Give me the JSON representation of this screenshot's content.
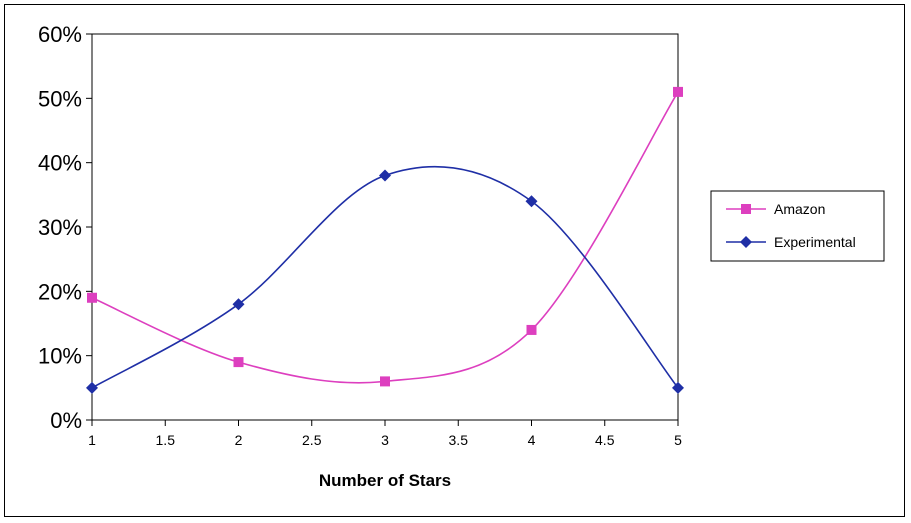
{
  "chart_data": {
    "type": "line",
    "title": "",
    "xlabel": "Number of Stars",
    "ylabel": "",
    "x": [
      1,
      2,
      3,
      4,
      5
    ],
    "xlim": [
      1,
      5
    ],
    "ylim": [
      0,
      60
    ],
    "x_ticks": [
      "1",
      "1.5",
      "2",
      "2.5",
      "3",
      "3.5",
      "4",
      "4.5",
      "5"
    ],
    "x_tick_values": [
      1,
      1.5,
      2,
      2.5,
      3,
      3.5,
      4,
      4.5,
      5
    ],
    "y_ticks": [
      "0%",
      "10%",
      "20%",
      "30%",
      "40%",
      "50%",
      "60%"
    ],
    "y_tick_values": [
      0,
      10,
      20,
      30,
      40,
      50,
      60
    ],
    "grid": false,
    "smoothed": true,
    "legend_position": "right",
    "series": [
      {
        "name": "Amazon",
        "values": [
          19,
          9,
          6,
          14,
          51
        ],
        "color": "#dd3fbf",
        "marker": "square"
      },
      {
        "name": "Experimental",
        "values": [
          5,
          18,
          38,
          34,
          5
        ],
        "color": "#1f2fa6",
        "marker": "diamond"
      }
    ]
  }
}
